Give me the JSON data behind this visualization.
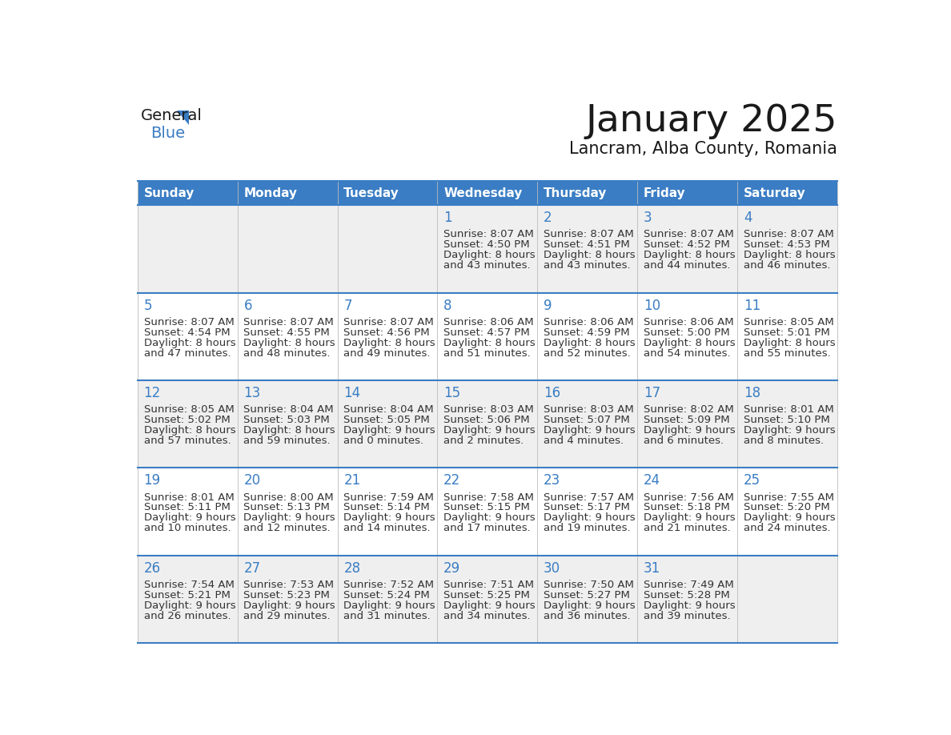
{
  "title": "January 2025",
  "subtitle": "Lancram, Alba County, Romania",
  "days_of_week": [
    "Sunday",
    "Monday",
    "Tuesday",
    "Wednesday",
    "Thursday",
    "Friday",
    "Saturday"
  ],
  "header_bg": "#3a7dc4",
  "header_text": "#ffffff",
  "row_bg_odd": "#efefef",
  "row_bg_even": "#ffffff",
  "border_color": "#3a7dc4",
  "day_number_color": "#3a7dc4",
  "cell_text_color": "#333333",
  "title_color": "#1a1a1a",
  "calendar_data": [
    [
      null,
      null,
      null,
      {
        "day": "1",
        "sunrise": "8:07 AM",
        "sunset": "4:50 PM",
        "dl1": "Daylight: 8 hours",
        "dl2": "and 43 minutes."
      },
      {
        "day": "2",
        "sunrise": "8:07 AM",
        "sunset": "4:51 PM",
        "dl1": "Daylight: 8 hours",
        "dl2": "and 43 minutes."
      },
      {
        "day": "3",
        "sunrise": "8:07 AM",
        "sunset": "4:52 PM",
        "dl1": "Daylight: 8 hours",
        "dl2": "and 44 minutes."
      },
      {
        "day": "4",
        "sunrise": "8:07 AM",
        "sunset": "4:53 PM",
        "dl1": "Daylight: 8 hours",
        "dl2": "and 46 minutes."
      }
    ],
    [
      {
        "day": "5",
        "sunrise": "8:07 AM",
        "sunset": "4:54 PM",
        "dl1": "Daylight: 8 hours",
        "dl2": "and 47 minutes."
      },
      {
        "day": "6",
        "sunrise": "8:07 AM",
        "sunset": "4:55 PM",
        "dl1": "Daylight: 8 hours",
        "dl2": "and 48 minutes."
      },
      {
        "day": "7",
        "sunrise": "8:07 AM",
        "sunset": "4:56 PM",
        "dl1": "Daylight: 8 hours",
        "dl2": "and 49 minutes."
      },
      {
        "day": "8",
        "sunrise": "8:06 AM",
        "sunset": "4:57 PM",
        "dl1": "Daylight: 8 hours",
        "dl2": "and 51 minutes."
      },
      {
        "day": "9",
        "sunrise": "8:06 AM",
        "sunset": "4:59 PM",
        "dl1": "Daylight: 8 hours",
        "dl2": "and 52 minutes."
      },
      {
        "day": "10",
        "sunrise": "8:06 AM",
        "sunset": "5:00 PM",
        "dl1": "Daylight: 8 hours",
        "dl2": "and 54 minutes."
      },
      {
        "day": "11",
        "sunrise": "8:05 AM",
        "sunset": "5:01 PM",
        "dl1": "Daylight: 8 hours",
        "dl2": "and 55 minutes."
      }
    ],
    [
      {
        "day": "12",
        "sunrise": "8:05 AM",
        "sunset": "5:02 PM",
        "dl1": "Daylight: 8 hours",
        "dl2": "and 57 minutes."
      },
      {
        "day": "13",
        "sunrise": "8:04 AM",
        "sunset": "5:03 PM",
        "dl1": "Daylight: 8 hours",
        "dl2": "and 59 minutes."
      },
      {
        "day": "14",
        "sunrise": "8:04 AM",
        "sunset": "5:05 PM",
        "dl1": "Daylight: 9 hours",
        "dl2": "and 0 minutes."
      },
      {
        "day": "15",
        "sunrise": "8:03 AM",
        "sunset": "5:06 PM",
        "dl1": "Daylight: 9 hours",
        "dl2": "and 2 minutes."
      },
      {
        "day": "16",
        "sunrise": "8:03 AM",
        "sunset": "5:07 PM",
        "dl1": "Daylight: 9 hours",
        "dl2": "and 4 minutes."
      },
      {
        "day": "17",
        "sunrise": "8:02 AM",
        "sunset": "5:09 PM",
        "dl1": "Daylight: 9 hours",
        "dl2": "and 6 minutes."
      },
      {
        "day": "18",
        "sunrise": "8:01 AM",
        "sunset": "5:10 PM",
        "dl1": "Daylight: 9 hours",
        "dl2": "and 8 minutes."
      }
    ],
    [
      {
        "day": "19",
        "sunrise": "8:01 AM",
        "sunset": "5:11 PM",
        "dl1": "Daylight: 9 hours",
        "dl2": "and 10 minutes."
      },
      {
        "day": "20",
        "sunrise": "8:00 AM",
        "sunset": "5:13 PM",
        "dl1": "Daylight: 9 hours",
        "dl2": "and 12 minutes."
      },
      {
        "day": "21",
        "sunrise": "7:59 AM",
        "sunset": "5:14 PM",
        "dl1": "Daylight: 9 hours",
        "dl2": "and 14 minutes."
      },
      {
        "day": "22",
        "sunrise": "7:58 AM",
        "sunset": "5:15 PM",
        "dl1": "Daylight: 9 hours",
        "dl2": "and 17 minutes."
      },
      {
        "day": "23",
        "sunrise": "7:57 AM",
        "sunset": "5:17 PM",
        "dl1": "Daylight: 9 hours",
        "dl2": "and 19 minutes."
      },
      {
        "day": "24",
        "sunrise": "7:56 AM",
        "sunset": "5:18 PM",
        "dl1": "Daylight: 9 hours",
        "dl2": "and 21 minutes."
      },
      {
        "day": "25",
        "sunrise": "7:55 AM",
        "sunset": "5:20 PM",
        "dl1": "Daylight: 9 hours",
        "dl2": "and 24 minutes."
      }
    ],
    [
      {
        "day": "26",
        "sunrise": "7:54 AM",
        "sunset": "5:21 PM",
        "dl1": "Daylight: 9 hours",
        "dl2": "and 26 minutes."
      },
      {
        "day": "27",
        "sunrise": "7:53 AM",
        "sunset": "5:23 PM",
        "dl1": "Daylight: 9 hours",
        "dl2": "and 29 minutes."
      },
      {
        "day": "28",
        "sunrise": "7:52 AM",
        "sunset": "5:24 PM",
        "dl1": "Daylight: 9 hours",
        "dl2": "and 31 minutes."
      },
      {
        "day": "29",
        "sunrise": "7:51 AM",
        "sunset": "5:25 PM",
        "dl1": "Daylight: 9 hours",
        "dl2": "and 34 minutes."
      },
      {
        "day": "30",
        "sunrise": "7:50 AM",
        "sunset": "5:27 PM",
        "dl1": "Daylight: 9 hours",
        "dl2": "and 36 minutes."
      },
      {
        "day": "31",
        "sunrise": "7:49 AM",
        "sunset": "5:28 PM",
        "dl1": "Daylight: 9 hours",
        "dl2": "and 39 minutes."
      },
      null
    ]
  ]
}
